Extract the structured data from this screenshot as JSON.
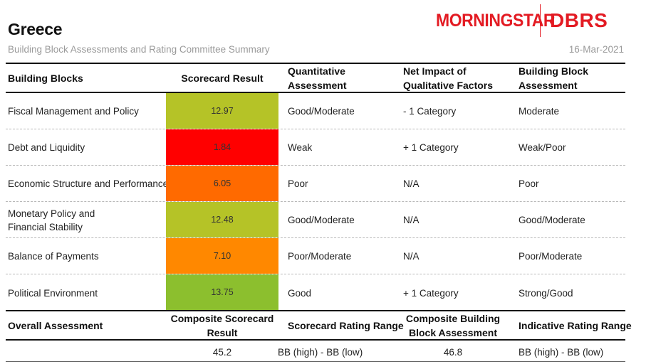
{
  "header": {
    "title": "Greece",
    "subtitle": "Building Block Assessments and Rating Committee Summary",
    "date": "16-Mar-2021",
    "logo_left": "MORNINGSTAR",
    "logo_right": "DBRS"
  },
  "table": {
    "columns": {
      "building_blocks": "Building Blocks",
      "scorecard_result": "Scorecard Result",
      "quantitative_assessment": "Quantitative Assessment",
      "net_impact": "Net Impact of Qualitative Factors",
      "building_block_assessment": "Building Block Assessment"
    },
    "rows": [
      {
        "block": "Fiscal Management and Policy",
        "score": "12.97",
        "score_color": "#b5c327",
        "quant": "Good/Moderate",
        "impact": "- 1 Category",
        "assessment": "Moderate"
      },
      {
        "block": "Debt and Liquidity",
        "score": "1.84",
        "score_color": "#ff0000",
        "quant": "Weak",
        "impact": "+ 1 Category",
        "assessment": "Weak/Poor"
      },
      {
        "block": "Economic Structure and Performance",
        "score": "6.05",
        "score_color": "#ff6a00",
        "quant": "Poor",
        "impact": "N/A",
        "assessment": "Poor"
      },
      {
        "block_line1": "Monetary Policy and",
        "block_line2": "Financial Stability",
        "score": "12.48",
        "score_color": "#b5c327",
        "quant": "Good/Moderate",
        "impact": "N/A",
        "assessment": "Good/Moderate"
      },
      {
        "block": "Balance of Payments",
        "score": "7.10",
        "score_color": "#ff8800",
        "quant": "Poor/Moderate",
        "impact": "N/A",
        "assessment": "Poor/Moderate"
      },
      {
        "block": "Political Environment",
        "score": "13.75",
        "score_color": "#8cbf2e",
        "quant": "Good",
        "impact": "+ 1 Category",
        "assessment": "Strong/Good"
      }
    ]
  },
  "summary": {
    "columns": {
      "overall": "Overall Assessment",
      "composite_scorecard": "Composite Scorecard Result",
      "scorecard_range": "Scorecard Rating Range",
      "composite_block": "Composite Building Block Assessment",
      "indicative_range": "Indicative Rating Range"
    },
    "values": {
      "composite_scorecard": "45.2",
      "scorecard_range": "BB (high) - BB (low)",
      "composite_block": "46.8",
      "indicative_range": "BB (high) - BB (low)"
    }
  }
}
